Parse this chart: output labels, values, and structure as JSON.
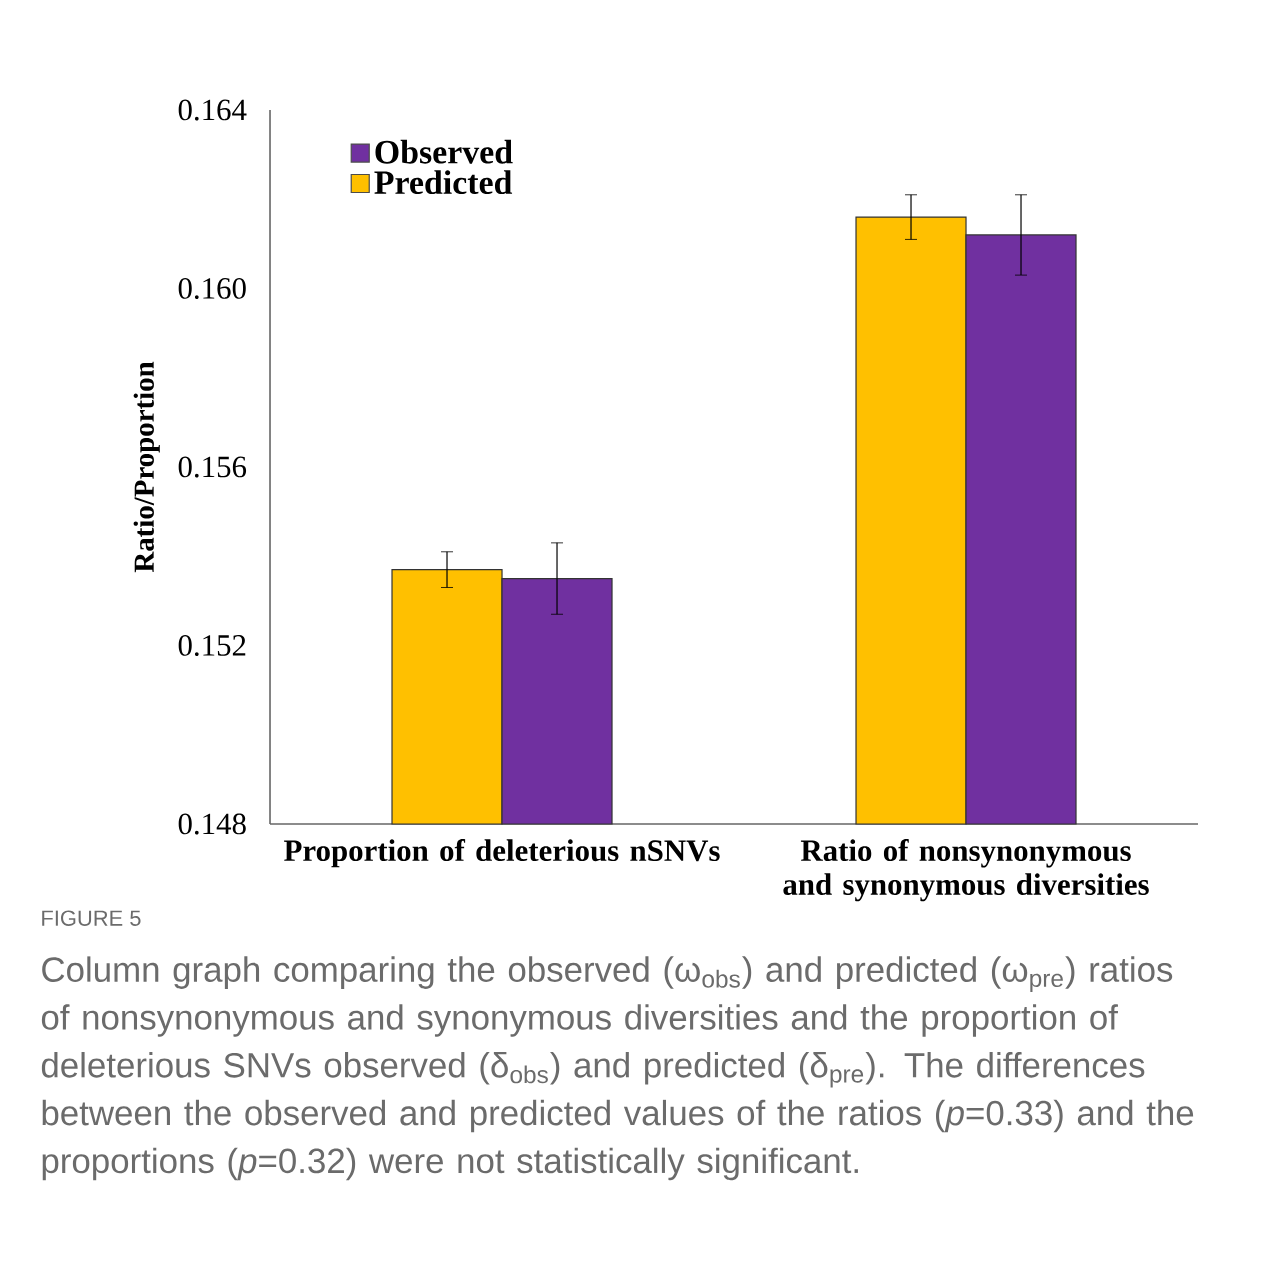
{
  "chart_data": {
    "type": "bar",
    "ylabel": "Ratio/Proportion",
    "categories": [
      "Proportion of deleterious nSNVs",
      "Ratio of nonsynonymous and synonymous diversities"
    ],
    "series": [
      {
        "name": "Predicted",
        "color": "#ffc000",
        "values": [
          0.1537,
          0.1616
        ],
        "errors": [
          0.0004,
          0.0005
        ]
      },
      {
        "name": "Observed",
        "color": "#7030a0",
        "values": [
          0.1535,
          0.1612
        ],
        "errors": [
          0.0008,
          0.0009
        ]
      }
    ],
    "ylim": [
      0.148,
      0.164
    ],
    "yticks": [
      0.148,
      0.152,
      0.156,
      {
        "value": 0.16,
        "label": "0.160"
      },
      0.164
    ],
    "legend": "top left",
    "grid": false,
    "annotations": [
      "FIGURE 5",
      "Column graph comparing the observed (ω$_{obs}$) and predicted (ω$_{pre}$) ratios of nonsynonymous and synonymous diversities and the proportion of deleterious SNVs observed (δ$_{obs}$) and predicted (δ$_{pre}$). The differences between the observed and predicted values of the ratios (*p*=0.33) and the proportions (*p*=0.32) were not statistically significant."
    ]
  }
}
